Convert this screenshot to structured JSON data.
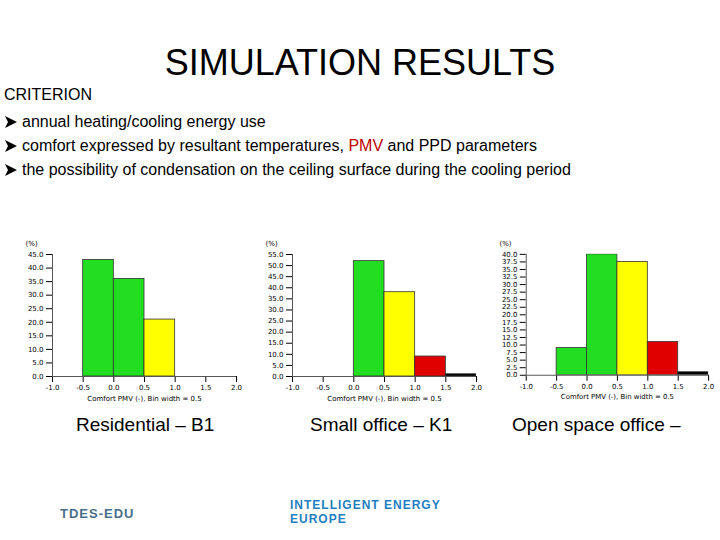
{
  "title": "SIMULATION RESULTS",
  "heading": "CRITERION",
  "bullets": [
    [
      {
        "text": "annual heating/cooling energy use"
      }
    ],
    [
      {
        "text": "comfort expressed by resultant temperatures, "
      },
      {
        "text": "PMV",
        "color": "#c00000"
      },
      {
        "text": " and PPD parameters"
      }
    ],
    [
      {
        "text": "the possibility of condensation on the ceiling surface during the cooling period"
      }
    ]
  ],
  "logos": [
    {
      "lines": [
        "TDES-EDU"
      ],
      "color": "#4a6f8a"
    },
    {
      "lines": [
        "INTELLIGENT ENERGY",
        "EUROPE"
      ],
      "color": "#1f7fc0"
    }
  ],
  "chart_data": [
    {
      "type": "histogram",
      "title": "Residential – B1",
      "xlabel": "Comfort PMV (-), Bin width = 0.5",
      "ylabel": "(%)",
      "bins": [
        -0.5,
        0,
        0.5,
        1
      ],
      "values": [
        43,
        36,
        21
      ],
      "colors": [
        "#22dd22",
        "#22dd22",
        "#ffff00"
      ],
      "xlim": [
        -1,
        2
      ],
      "xticks": [
        {
          "value": -1,
          "label": "-1.0"
        },
        -0.5,
        {
          "value": 0,
          "label": "0.0"
        },
        0.5,
        {
          "value": 1,
          "label": "1.0"
        },
        1.5,
        {
          "value": 2,
          "label": "2.0"
        }
      ],
      "ylim": [
        0,
        45
      ],
      "yticks": [
        {
          "value": 0,
          "label": "0.0"
        },
        {
          "value": 5,
          "label": "5.0"
        },
        {
          "value": 10,
          "label": "10.0"
        },
        {
          "value": 15,
          "label": "15.0"
        },
        {
          "value": 20,
          "label": "20.0"
        },
        {
          "value": 25,
          "label": "25.0"
        },
        {
          "value": 30,
          "label": "30.0"
        },
        {
          "value": 35,
          "label": "35.0"
        },
        {
          "value": 40,
          "label": "40.0"
        },
        {
          "value": 45,
          "label": "45.0"
        }
      ]
    },
    {
      "type": "histogram",
      "title": "Small office – K1",
      "xlabel": "Comfort PMV (-), Bin width = 0.5",
      "ylabel": "(%)",
      "bins": [
        0,
        0.5,
        1,
        1.5,
        2
      ],
      "values": [
        52,
        38,
        9,
        1
      ],
      "colors": [
        "#22dd22",
        "#ffff00",
        "#e00000",
        "#000000"
      ],
      "xlim": [
        -1,
        2
      ],
      "xticks": [
        {
          "value": -1,
          "label": "-1.0"
        },
        -0.5,
        {
          "value": 0,
          "label": "0.0"
        },
        0.5,
        {
          "value": 1,
          "label": "1.0"
        },
        1.5,
        {
          "value": 2,
          "label": "2.0"
        }
      ],
      "ylim": [
        0,
        55
      ],
      "yticks": [
        {
          "value": 0,
          "label": "0.0"
        },
        {
          "value": 5,
          "label": "5.0"
        },
        {
          "value": 10,
          "label": "10.0"
        },
        {
          "value": 15,
          "label": "15.0"
        },
        {
          "value": 20,
          "label": "20.0"
        },
        {
          "value": 25,
          "label": "25.0"
        },
        {
          "value": 30,
          "label": "30.0"
        },
        {
          "value": 35,
          "label": "35.0"
        },
        {
          "value": 40,
          "label": "40.0"
        },
        {
          "value": 45,
          "label": "45.0"
        },
        {
          "value": 50,
          "label": "50.0"
        },
        {
          "value": 55,
          "label": "55.0"
        }
      ]
    },
    {
      "type": "histogram",
      "title": "Open space office –",
      "xlabel": "Comfort PMV (-), Bin width = 0.5",
      "ylabel": "(%)",
      "bins": [
        -0.5,
        0,
        0.5,
        1,
        1.5,
        2
      ],
      "values": [
        9,
        40,
        37.5,
        11,
        1
      ],
      "colors": [
        "#22dd22",
        "#22dd22",
        "#ffff00",
        "#e00000",
        "#000000"
      ],
      "xlim": [
        -1,
        2
      ],
      "xticks": [
        {
          "value": -1,
          "label": "-1.0"
        },
        -0.5,
        {
          "value": 0,
          "label": "0.0"
        },
        0.5,
        {
          "value": 1,
          "label": "1.0"
        },
        1.5,
        {
          "value": 2,
          "label": "2.0"
        }
      ],
      "ylim": [
        0,
        40
      ],
      "yticks": [
        {
          "value": 0,
          "label": "0.0"
        },
        2.5,
        {
          "value": 5,
          "label": "5.0"
        },
        7.5,
        {
          "value": 10,
          "label": "10.0"
        },
        12.5,
        {
          "value": 15,
          "label": "15.0"
        },
        17.5,
        {
          "value": 20,
          "label": "20.0"
        },
        22.5,
        {
          "value": 25,
          "label": "25.0"
        },
        27.5,
        {
          "value": 30,
          "label": "30.0"
        },
        32.5,
        {
          "value": 35,
          "label": "35.0"
        },
        37.5,
        {
          "value": 40,
          "label": "40.0"
        }
      ]
    }
  ]
}
